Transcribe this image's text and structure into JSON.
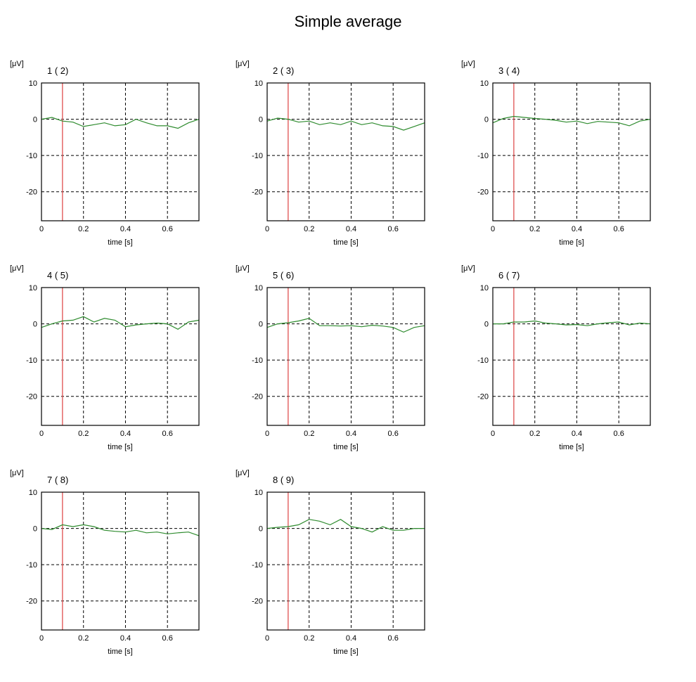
{
  "title": "Simple average",
  "chart_data": {
    "type": "line",
    "title": "Simple average",
    "unit_label": "[μV]",
    "xlabel": "time [s]",
    "ylim": [
      -28,
      10
    ],
    "xlim": [
      0,
      0.75
    ],
    "yticks": [
      10,
      0,
      -10,
      -20
    ],
    "xticks": [
      0,
      0.2,
      0.4,
      0.6
    ],
    "xtick_labels": [
      "0",
      "0.2",
      "0.4",
      "0.6"
    ],
    "ytick_labels": [
      "10",
      "0",
      "-10",
      "-20"
    ],
    "grid": true,
    "grid_style": "dashed",
    "marker_time": 0.1,
    "marker_color": "#e05050",
    "line_color": "#2e8b2e",
    "x": [
      0,
      0.05,
      0.1,
      0.15,
      0.2,
      0.25,
      0.3,
      0.35,
      0.4,
      0.45,
      0.5,
      0.55,
      0.6,
      0.65,
      0.7,
      0.75
    ],
    "panels": [
      {
        "title": "1 ( 2)",
        "values": [
          0,
          0.5,
          -0.5,
          -0.8,
          -2.0,
          -1.5,
          -1.0,
          -1.8,
          -1.5,
          0.0,
          -1.0,
          -1.8,
          -1.8,
          -2.5,
          -1.0,
          0.0
        ]
      },
      {
        "title": "2 ( 3)",
        "values": [
          -0.5,
          0.3,
          0.0,
          -0.8,
          -0.5,
          -1.5,
          -1.0,
          -1.5,
          -0.5,
          -1.5,
          -1.0,
          -1.8,
          -2.0,
          -3.0,
          -2.0,
          -1.0
        ]
      },
      {
        "title": "3 ( 4)",
        "values": [
          -1.0,
          0.2,
          0.8,
          0.5,
          0.2,
          0.0,
          -0.3,
          -0.8,
          -0.5,
          -1.2,
          -0.6,
          -0.8,
          -1.0,
          -1.8,
          -0.5,
          0.0
        ]
      },
      {
        "title": "4 ( 5)",
        "values": [
          -1.0,
          0.0,
          0.8,
          1.0,
          2.0,
          0.5,
          1.5,
          1.0,
          -0.8,
          -0.3,
          0.0,
          0.2,
          0.0,
          -1.5,
          0.5,
          1.0
        ]
      },
      {
        "title": "5 ( 6)",
        "values": [
          -1.0,
          0.0,
          0.3,
          0.8,
          1.5,
          -0.5,
          -0.5,
          -0.6,
          -0.5,
          -0.8,
          -0.4,
          -0.6,
          -1.0,
          -2.3,
          -1.0,
          -0.5
        ]
      },
      {
        "title": "6 ( 7)",
        "values": [
          0.0,
          0.0,
          0.5,
          0.5,
          0.8,
          0.2,
          0.0,
          -0.3,
          -0.2,
          -0.5,
          0.0,
          0.3,
          0.5,
          -0.3,
          0.2,
          0.0
        ]
      },
      {
        "title": "7 ( 8)",
        "values": [
          0.0,
          -0.3,
          1.0,
          0.5,
          1.0,
          0.5,
          -0.5,
          -0.8,
          -1.0,
          -0.5,
          -1.2,
          -1.0,
          -1.5,
          -1.2,
          -1.0,
          -2.0
        ]
      },
      {
        "title": "8 ( 9)",
        "values": [
          0.0,
          0.3,
          0.5,
          1.0,
          2.5,
          2.0,
          1.0,
          2.5,
          0.5,
          0.0,
          -1.0,
          0.5,
          -0.5,
          -0.5,
          0.0,
          0.0
        ]
      }
    ]
  }
}
